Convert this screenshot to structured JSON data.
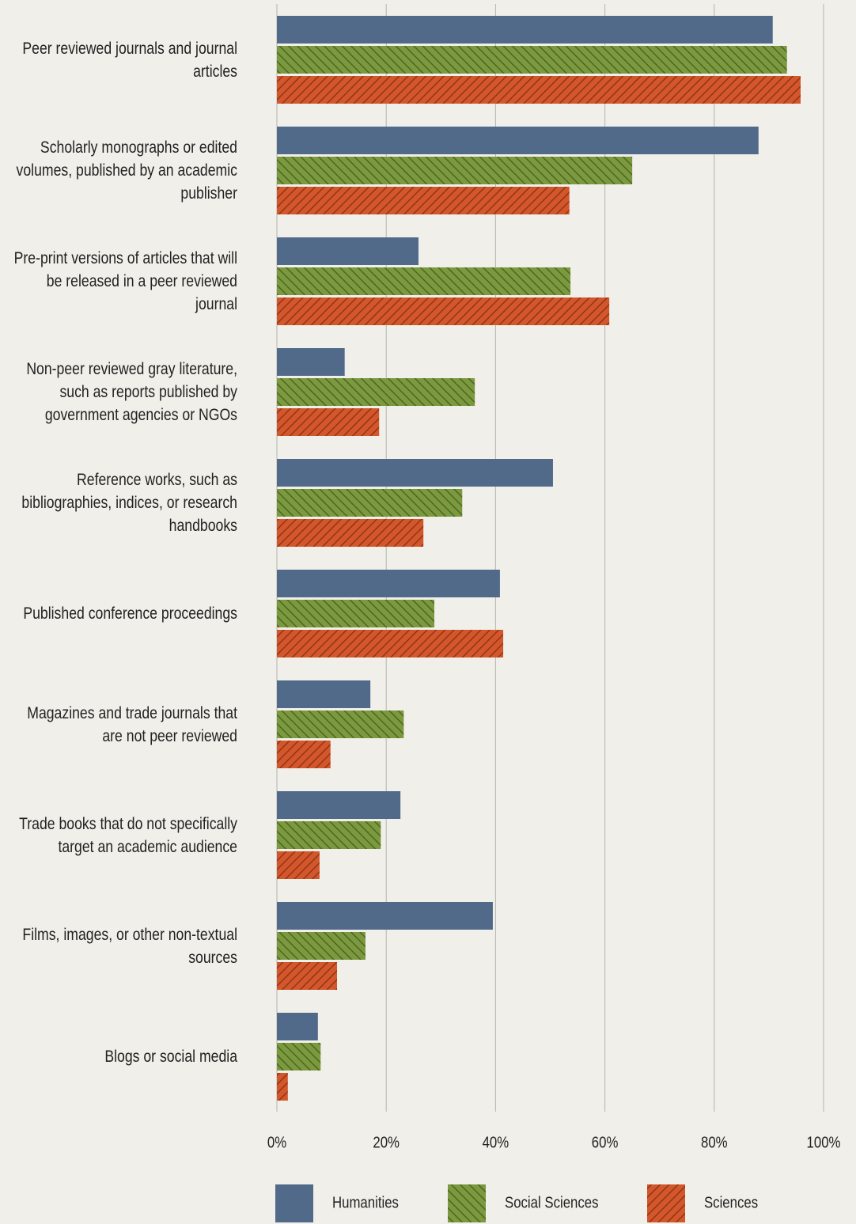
{
  "chart_data": {
    "type": "bar",
    "orientation": "horizontal",
    "categories": [
      "Peer reviewed journals and journal articles",
      "Scholarly monographs or edited volumes, published by an academic publisher",
      "Pre-print versions of articles that will be released in a peer reviewed journal",
      "Non-peer reviewed gray literature, such as reports published by government agencies or NGOs",
      "Reference works, such as bibliographies, indices, or research handbooks",
      "Published conference proceedings",
      "Magazines and trade journals that are not peer reviewed",
      "Trade books that do not specifically target an academic audience",
      "Films, images, or other non-textual sources",
      "Blogs or social media"
    ],
    "series": [
      {
        "name": "Humanities",
        "color": "#526a8a",
        "values": [
          90.7,
          88.1,
          25.9,
          12.4,
          50.5,
          40.8,
          17.1,
          22.6,
          39.5,
          7.5
        ]
      },
      {
        "name": "Social Sciences",
        "color": "#7b9a3d",
        "pattern": "hatch-back",
        "values": [
          93.3,
          65.0,
          53.7,
          36.2,
          33.9,
          28.8,
          23.2,
          19.0,
          16.2,
          8.0
        ]
      },
      {
        "name": "Sciences",
        "color": "#d5562a",
        "pattern": "hatch-forward",
        "values": [
          95.8,
          53.5,
          60.8,
          18.7,
          26.8,
          41.4,
          9.8,
          7.8,
          11.0,
          2.0
        ]
      }
    ],
    "xlim": [
      0,
      100
    ],
    "xticks": [
      {
        "value": 0,
        "label": "0%"
      },
      {
        "value": 20,
        "label": "20%"
      },
      {
        "value": 40,
        "label": "40%"
      },
      {
        "value": 60,
        "label": "60%"
      },
      {
        "value": 80,
        "label": "80%"
      },
      {
        "value": 100,
        "label": "100%"
      }
    ],
    "grid": true,
    "legend": "bottom"
  }
}
